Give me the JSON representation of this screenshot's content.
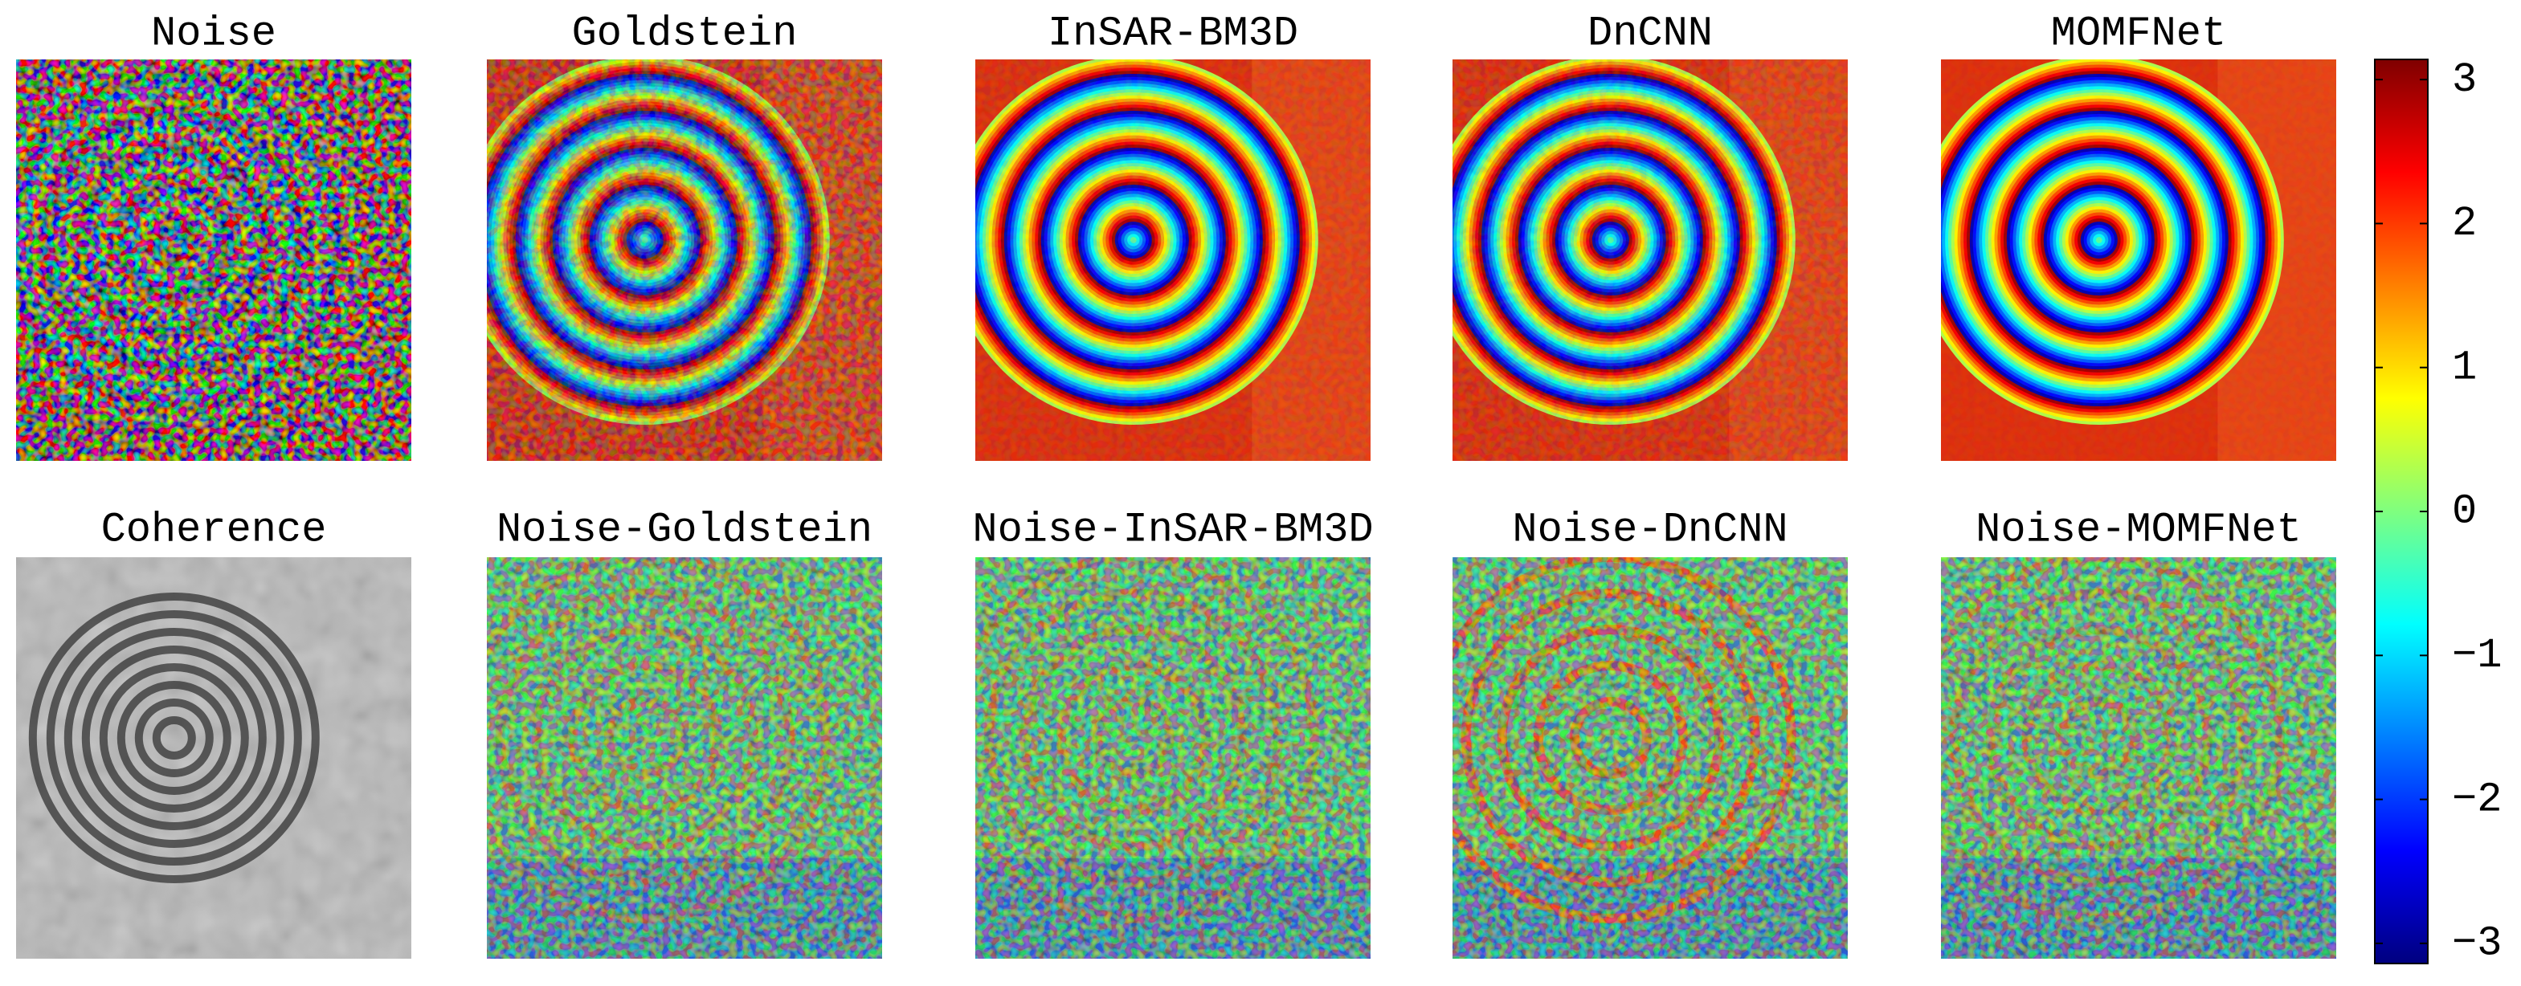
{
  "panels": {
    "row1": [
      "Noise",
      "Goldstein",
      "InSAR-BM3D",
      "DnCNN",
      "MOMFNet"
    ],
    "row2": [
      "Coherence",
      "Noise-Goldstein",
      "Noise-InSAR-BM3D",
      "Noise-DnCNN",
      "Noise-MOMFNet"
    ]
  },
  "colorbar": {
    "type": "colorbar",
    "clim": [
      -3.14,
      3.14
    ],
    "ticks": [
      {
        "value": -3,
        "label": "−3"
      },
      {
        "value": -2,
        "label": "−2"
      },
      {
        "value": -1,
        "label": "−1"
      },
      0,
      1,
      2,
      3
    ]
  }
}
